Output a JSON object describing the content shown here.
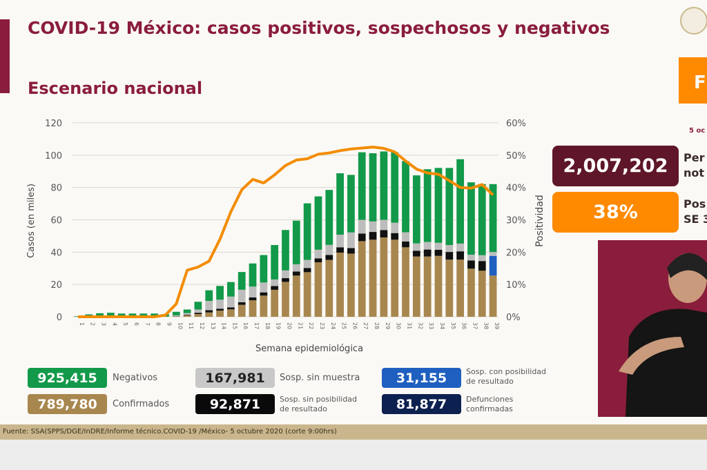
{
  "header": {
    "title": "COVID-19 México: casos positivos, sospechosos y negativos",
    "subtitle": "Escenario nacional"
  },
  "side": {
    "orange_box_text": "F",
    "date_text": "5 oc",
    "notified_value": "2,007,202",
    "notified_label_1": "Per",
    "notified_label_2": "not",
    "positivity_value": "38%",
    "positivity_label_1": "Pos",
    "positivity_label_2": "SE 3"
  },
  "legend": {
    "negativos": {
      "value": "925,415",
      "label": "Negativos"
    },
    "confirmados": {
      "value": "789,780",
      "label": "Confirmados"
    },
    "sin_muestra": {
      "value": "167,981",
      "label": "Sosp. sin muestra"
    },
    "sin_posibilidad": {
      "value": "92,871",
      "label_1": "Sosp. sin posibilidad",
      "label_2": "de resultado"
    },
    "con_posibilidad": {
      "value": "31,155",
      "label_1": "Sosp. con posibilidad",
      "label_2": "de resultado"
    },
    "defunciones": {
      "value": "81,877",
      "label_1": "Defunciones",
      "label_2": "confirmadas"
    }
  },
  "footer": {
    "source": "Fuente: SSA(SPPS/DGE/InDRE/Informe técnico.COVID-19 /México- 5 octubre 2020 (corte 9:00hrs)"
  },
  "colors": {
    "confirmados": "#a8874f",
    "sin_posibilidad": "#111111",
    "con_posibilidad": "#1f5fbf",
    "sin_muestra": "#bdbdbd",
    "negativos": "#12994a",
    "positividad": "#f28c00",
    "brand": "#8a1d3b",
    "defunciones": "#0d2150"
  },
  "chart_data": {
    "type": "bar",
    "stacked": true,
    "xlabel": "Semana epidemiológica",
    "ylabel": "Casos (en miles)",
    "y2label": "Positividad",
    "ylim": [
      0,
      120
    ],
    "y2lim": [
      0,
      60
    ],
    "yticks": [
      "0",
      "20",
      "40",
      "60",
      "80",
      "100",
      "120"
    ],
    "y2ticks": [
      "0%",
      "10%",
      "20%",
      "30%",
      "40%",
      "50%",
      "60%"
    ],
    "grid": true,
    "categories": [
      "1",
      "2",
      "3",
      "4",
      "5",
      "6",
      "7",
      "8",
      "9",
      "10",
      "11",
      "12",
      "13",
      "14",
      "15",
      "16",
      "17",
      "18",
      "19",
      "20",
      "21",
      "22",
      "23",
      "24",
      "25",
      "26",
      "27",
      "28",
      "29",
      "30",
      "31",
      "32",
      "33",
      "34",
      "35",
      "36",
      "37",
      "38",
      "39"
    ],
    "series": [
      {
        "name": "Confirmados",
        "key": "confirmados",
        "values": [
          0,
          0,
          0,
          0,
          0,
          0,
          0,
          0,
          0.1,
          0.3,
          1,
          1.7,
          2.7,
          3.8,
          4.6,
          7.4,
          10.2,
          13.1,
          16.7,
          21.6,
          25.5,
          27.6,
          33.7,
          35.2,
          39.7,
          39.1,
          46.8,
          47.7,
          49.1,
          47.7,
          43,
          37.3,
          37.3,
          37.7,
          35.4,
          35.4,
          29.8,
          28.5,
          25.5
        ]
      },
      {
        "name": "Sosp. sin posibilidad de resultado",
        "key": "sin_posibilidad",
        "values": [
          0,
          0,
          0,
          0,
          0,
          0,
          0,
          0,
          0,
          0.1,
          0.3,
          0.8,
          1.4,
          1.2,
          1.2,
          1.6,
          1.8,
          2,
          2.3,
          2.3,
          2.5,
          2.6,
          2.4,
          3.1,
          3.3,
          3.4,
          4.7,
          4.8,
          4.6,
          4.1,
          3.6,
          3.6,
          4.3,
          3.8,
          4.7,
          5.1,
          5,
          6,
          0
        ]
      },
      {
        "name": "Sosp. con posibilidad de resultado",
        "key": "con_posibilidad",
        "values": [
          0,
          0,
          0,
          0,
          0,
          0,
          0,
          0,
          0,
          0,
          0,
          0,
          0,
          0,
          0,
          0,
          0,
          0,
          0,
          0,
          0,
          0,
          0,
          0,
          0,
          0,
          0,
          0,
          0,
          0,
          0,
          0,
          0,
          0,
          0,
          0,
          0,
          0,
          12.2
        ]
      },
      {
        "name": "Sosp. sin muestra",
        "key": "sin_muestra",
        "values": [
          0,
          0,
          0,
          0,
          0,
          0,
          0,
          0,
          0,
          0.5,
          1,
          2,
          5.7,
          5.6,
          6.7,
          7.7,
          6.7,
          6.1,
          4.1,
          4.8,
          4.5,
          5,
          5.4,
          6.2,
          7.8,
          9.7,
          8.5,
          6.5,
          6.3,
          6.4,
          5.7,
          4.5,
          4.7,
          4.3,
          4.3,
          4.8,
          3.6,
          3.6,
          2.4
        ]
      },
      {
        "name": "Negativos",
        "key": "negativos",
        "values": [
          0.3,
          1.5,
          2.2,
          2.5,
          2,
          2,
          2,
          2,
          1.5,
          2.2,
          2.2,
          4.8,
          6.6,
          8.5,
          9,
          11,
          14.3,
          17,
          21.3,
          25,
          27,
          35,
          33,
          34,
          38,
          35.6,
          41.8,
          42.2,
          42.3,
          43.6,
          44,
          42.1,
          45,
          46.3,
          47.7,
          52.2,
          44.8,
          44,
          42
        ]
      }
    ],
    "line": {
      "name": "Positividad",
      "axis": "right",
      "values": [
        0,
        0,
        0,
        0,
        0,
        0,
        0,
        0,
        0.5,
        4,
        14.4,
        15.4,
        17.2,
        24,
        32.5,
        39.3,
        42.5,
        41.4,
        43.9,
        46.8,
        48.5,
        48.9,
        50.3,
        50.7,
        51.4,
        51.9,
        52.2,
        52.5,
        52.1,
        51,
        48.2,
        45.7,
        44.5,
        44.1,
        42.1,
        40,
        39.8,
        40.9,
        37.7
      ]
    }
  }
}
